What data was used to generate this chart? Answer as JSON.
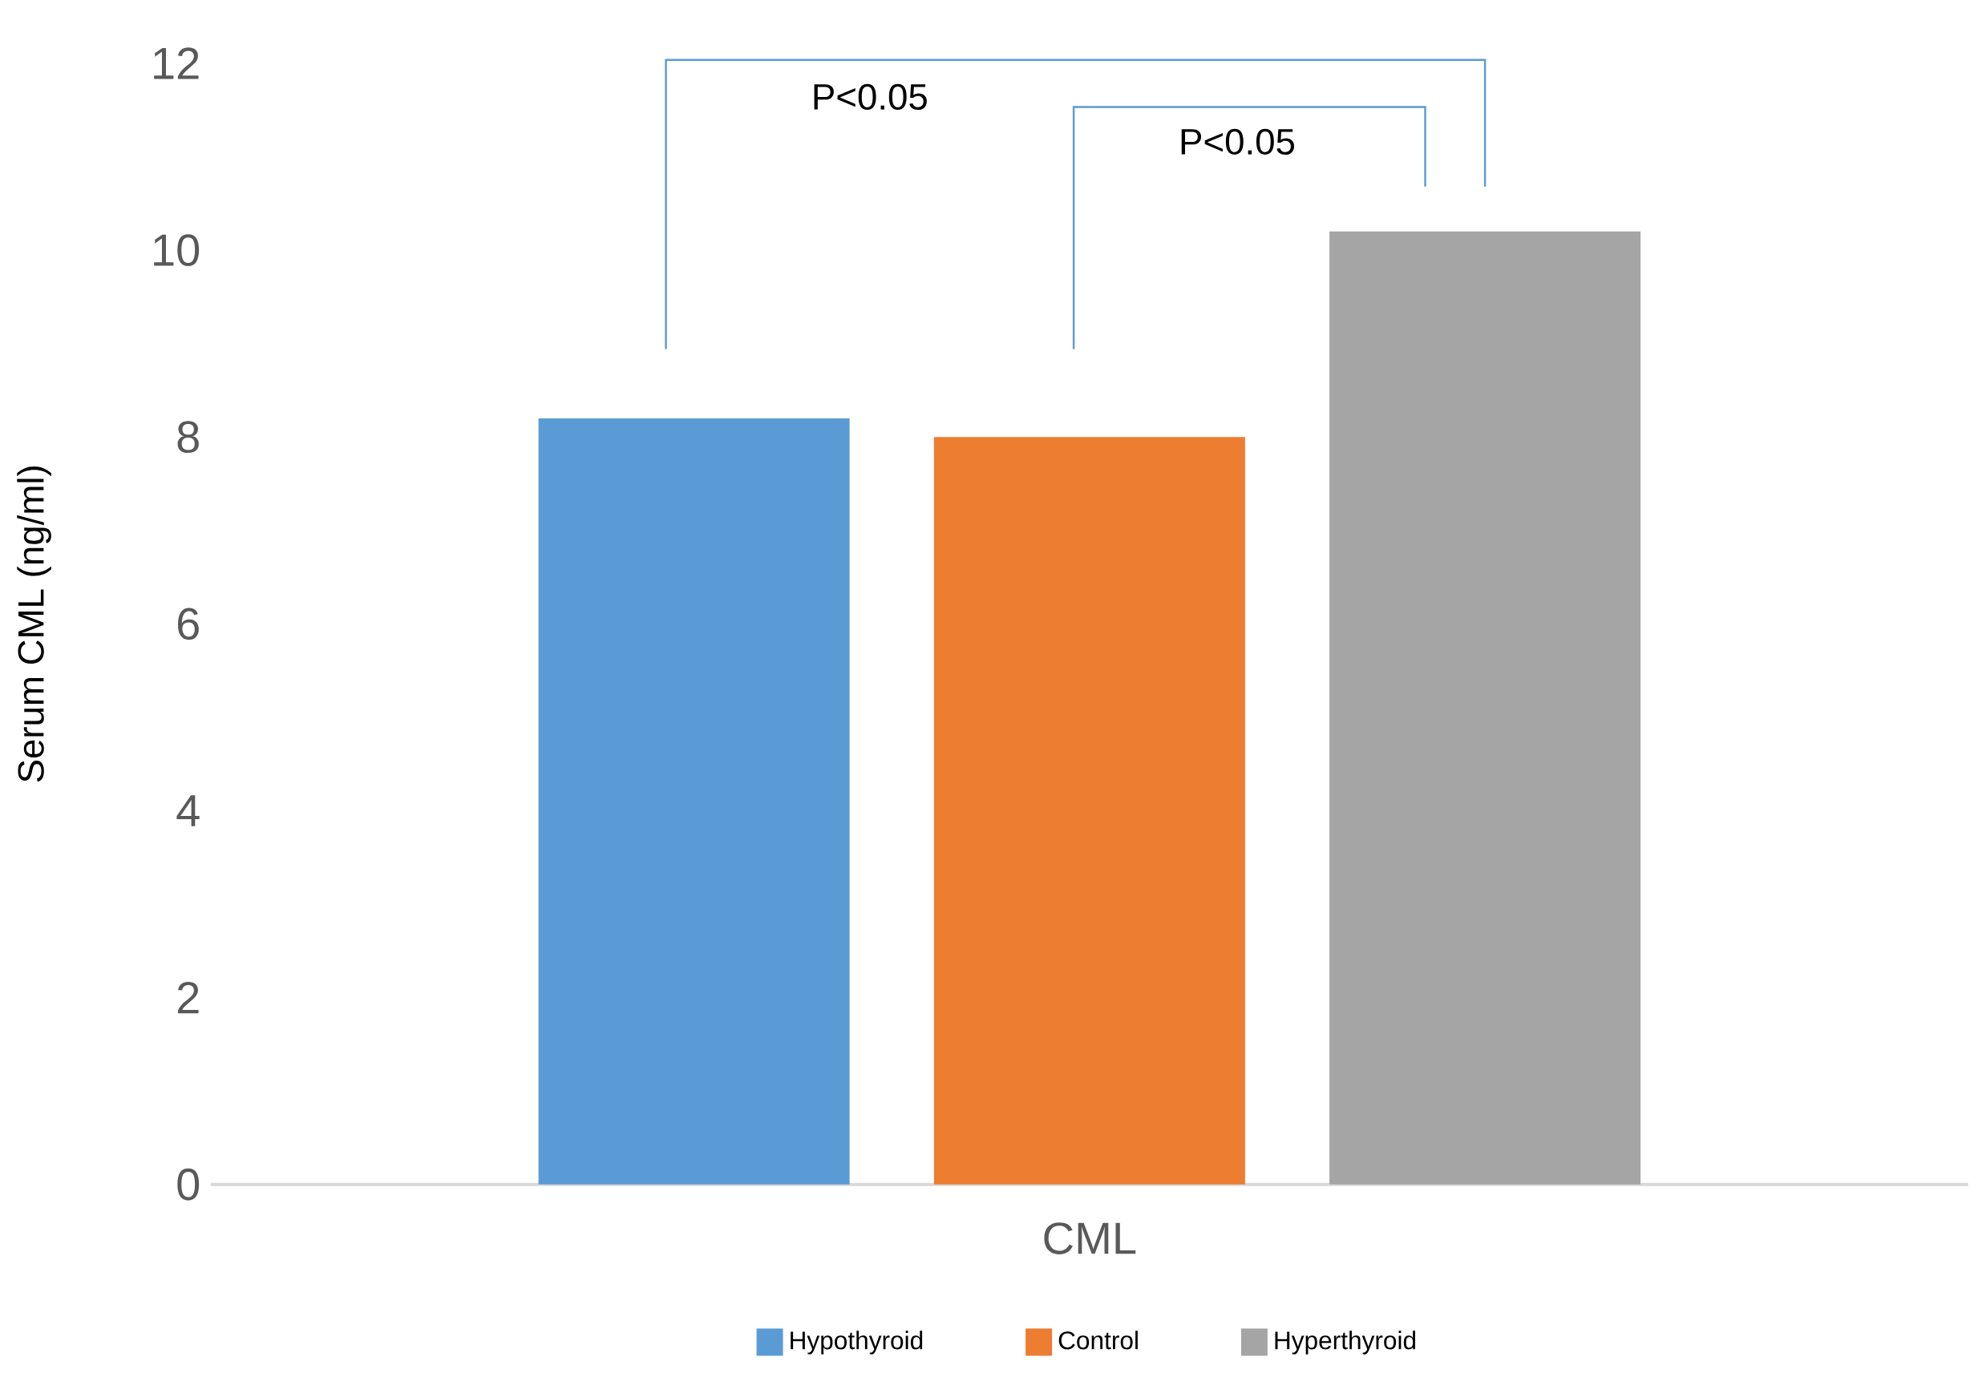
{
  "chart_data": {
    "type": "bar",
    "ylabel": "Serum CML (ng/ml)",
    "categories": [
      "CML"
    ],
    "series": [
      {
        "name": "Hypothyroid",
        "color": "#5b9bd5",
        "values": [
          8.2
        ]
      },
      {
        "name": "Control",
        "color": "#ed7d31",
        "values": [
          8.0
        ]
      },
      {
        "name": "Hyperthyroid",
        "color": "#a5a5a5",
        "values": [
          10.2
        ]
      }
    ],
    "ylim": [
      0,
      12
    ],
    "yticks": [
      0,
      2,
      4,
      6,
      8,
      10,
      12
    ],
    "grid": false,
    "legend": "bottom",
    "annotations": [
      "P<0.05",
      "P<0.05"
    ]
  }
}
